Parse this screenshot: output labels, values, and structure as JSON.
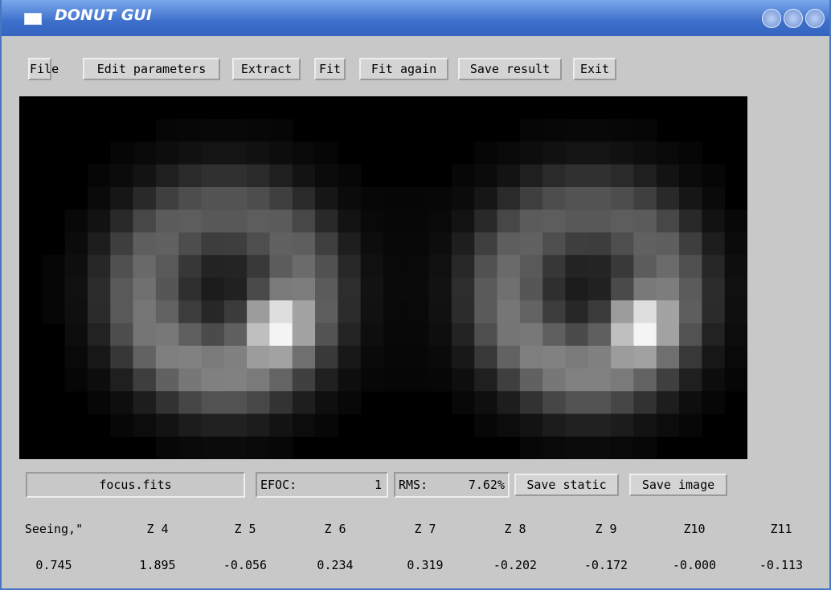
{
  "window": {
    "title": "DONUT GUI"
  },
  "toolbar": {
    "buttons": [
      "File",
      "Edit parameters",
      "Extract",
      "Fit",
      "Fit again",
      "Save result",
      "Exit"
    ]
  },
  "status": {
    "file": "focus.fits",
    "efoc_label": "EFOC:",
    "efoc_value": "1",
    "rms_label": "RMS:",
    "rms_value": "7.62%",
    "buttons": [
      "Save static",
      "Save image"
    ]
  },
  "results": {
    "headers": [
      "Seeing,\"",
      "Z 4",
      "Z 5",
      "Z 6",
      "Z 7",
      "Z 8",
      "Z 9",
      "Z10",
      "Z11"
    ],
    "values": [
      "0.745",
      "1.895",
      "-0.056",
      "0.234",
      "0.319",
      "-0.202",
      "-0.172",
      "-0.000",
      "-0.113"
    ]
  }
}
